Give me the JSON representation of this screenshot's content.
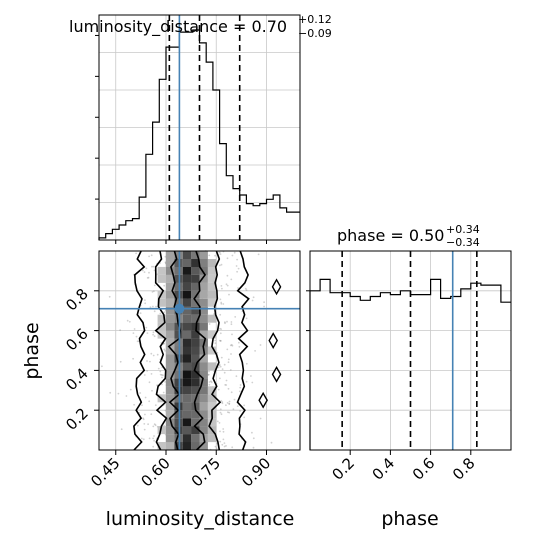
{
  "colors": {
    "truth": "#4682b4",
    "hist": "#000000",
    "grid": "#c8c8c8",
    "background": "#ffffff"
  },
  "chart_data": [
    {
      "type": "histogram",
      "panel": "luminosity_distance-marginal",
      "title": {
        "param": "luminosity_distance",
        "median": "0.70",
        "upper": "+0.12",
        "lower": "−0.09"
      },
      "bin_edges": [
        0.4,
        0.42,
        0.44,
        0.46,
        0.48,
        0.5,
        0.52,
        0.54,
        0.56,
        0.58,
        0.6,
        0.62,
        0.64,
        0.66,
        0.68,
        0.7,
        0.72,
        0.74,
        0.76,
        0.78,
        0.8,
        0.82,
        0.84,
        0.86,
        0.88,
        0.9,
        0.92,
        0.94,
        0.96,
        0.98,
        1.0
      ],
      "counts": [
        0.01,
        0.03,
        0.05,
        0.07,
        0.09,
        0.1,
        0.2,
        0.4,
        0.55,
        0.75,
        0.9,
        0.9,
        0.97,
        0.97,
        0.98,
        0.92,
        0.83,
        0.7,
        0.45,
        0.3,
        0.24,
        0.21,
        0.17,
        0.16,
        0.17,
        0.19,
        0.21,
        0.15,
        0.13,
        0.13
      ],
      "quantiles": [
        0.61,
        0.7,
        0.82
      ],
      "truth": 0.64,
      "xlim": [
        0.4,
        1.0
      ],
      "x_ticks": [
        0.45,
        0.6,
        0.75,
        0.9
      ],
      "ylim": [
        0,
        1.0
      ]
    },
    {
      "type": "density-contour",
      "panel": "phase-vs-luminosity_distance",
      "xlim": [
        0.4,
        1.0
      ],
      "ylim": [
        0.0,
        1.0
      ],
      "x_ticks": [
        0.45,
        0.6,
        0.75,
        0.9
      ],
      "x_tick_labels": [
        "0.45",
        "0.60",
        "0.75",
        "0.90"
      ],
      "y_ticks": [
        0.2,
        0.4,
        0.6,
        0.8
      ],
      "y_tick_labels": [
        "0.2",
        "0.4",
        "0.6",
        "0.8"
      ],
      "xlabel": "luminosity_distance",
      "ylabel": "phase",
      "truth": {
        "x": 0.64,
        "y": 0.71
      }
    },
    {
      "type": "histogram",
      "panel": "phase-marginal",
      "title": {
        "param": "phase",
        "median": "0.50",
        "upper": "+0.34",
        "lower": "−0.34"
      },
      "bin_edges": [
        0.0,
        0.05,
        0.1,
        0.15,
        0.2,
        0.25,
        0.3,
        0.35,
        0.4,
        0.45,
        0.5,
        0.55,
        0.6,
        0.65,
        0.7,
        0.75,
        0.8,
        0.85,
        0.9,
        0.95,
        1.0
      ],
      "counts": [
        0.84,
        0.9,
        0.83,
        0.83,
        0.81,
        0.79,
        0.81,
        0.83,
        0.82,
        0.84,
        0.82,
        0.82,
        0.9,
        0.8,
        0.81,
        0.85,
        0.88,
        0.87,
        0.87,
        0.78
      ],
      "quantiles": [
        0.16,
        0.5,
        0.83
      ],
      "truth": 0.71,
      "xlim": [
        0.0,
        1.0
      ],
      "x_ticks": [
        0.2,
        0.4,
        0.6,
        0.8
      ],
      "x_tick_labels": [
        "0.2",
        "0.4",
        "0.6",
        "0.8"
      ],
      "xlabel": "phase",
      "ylim": [
        0,
        1.0
      ]
    }
  ]
}
